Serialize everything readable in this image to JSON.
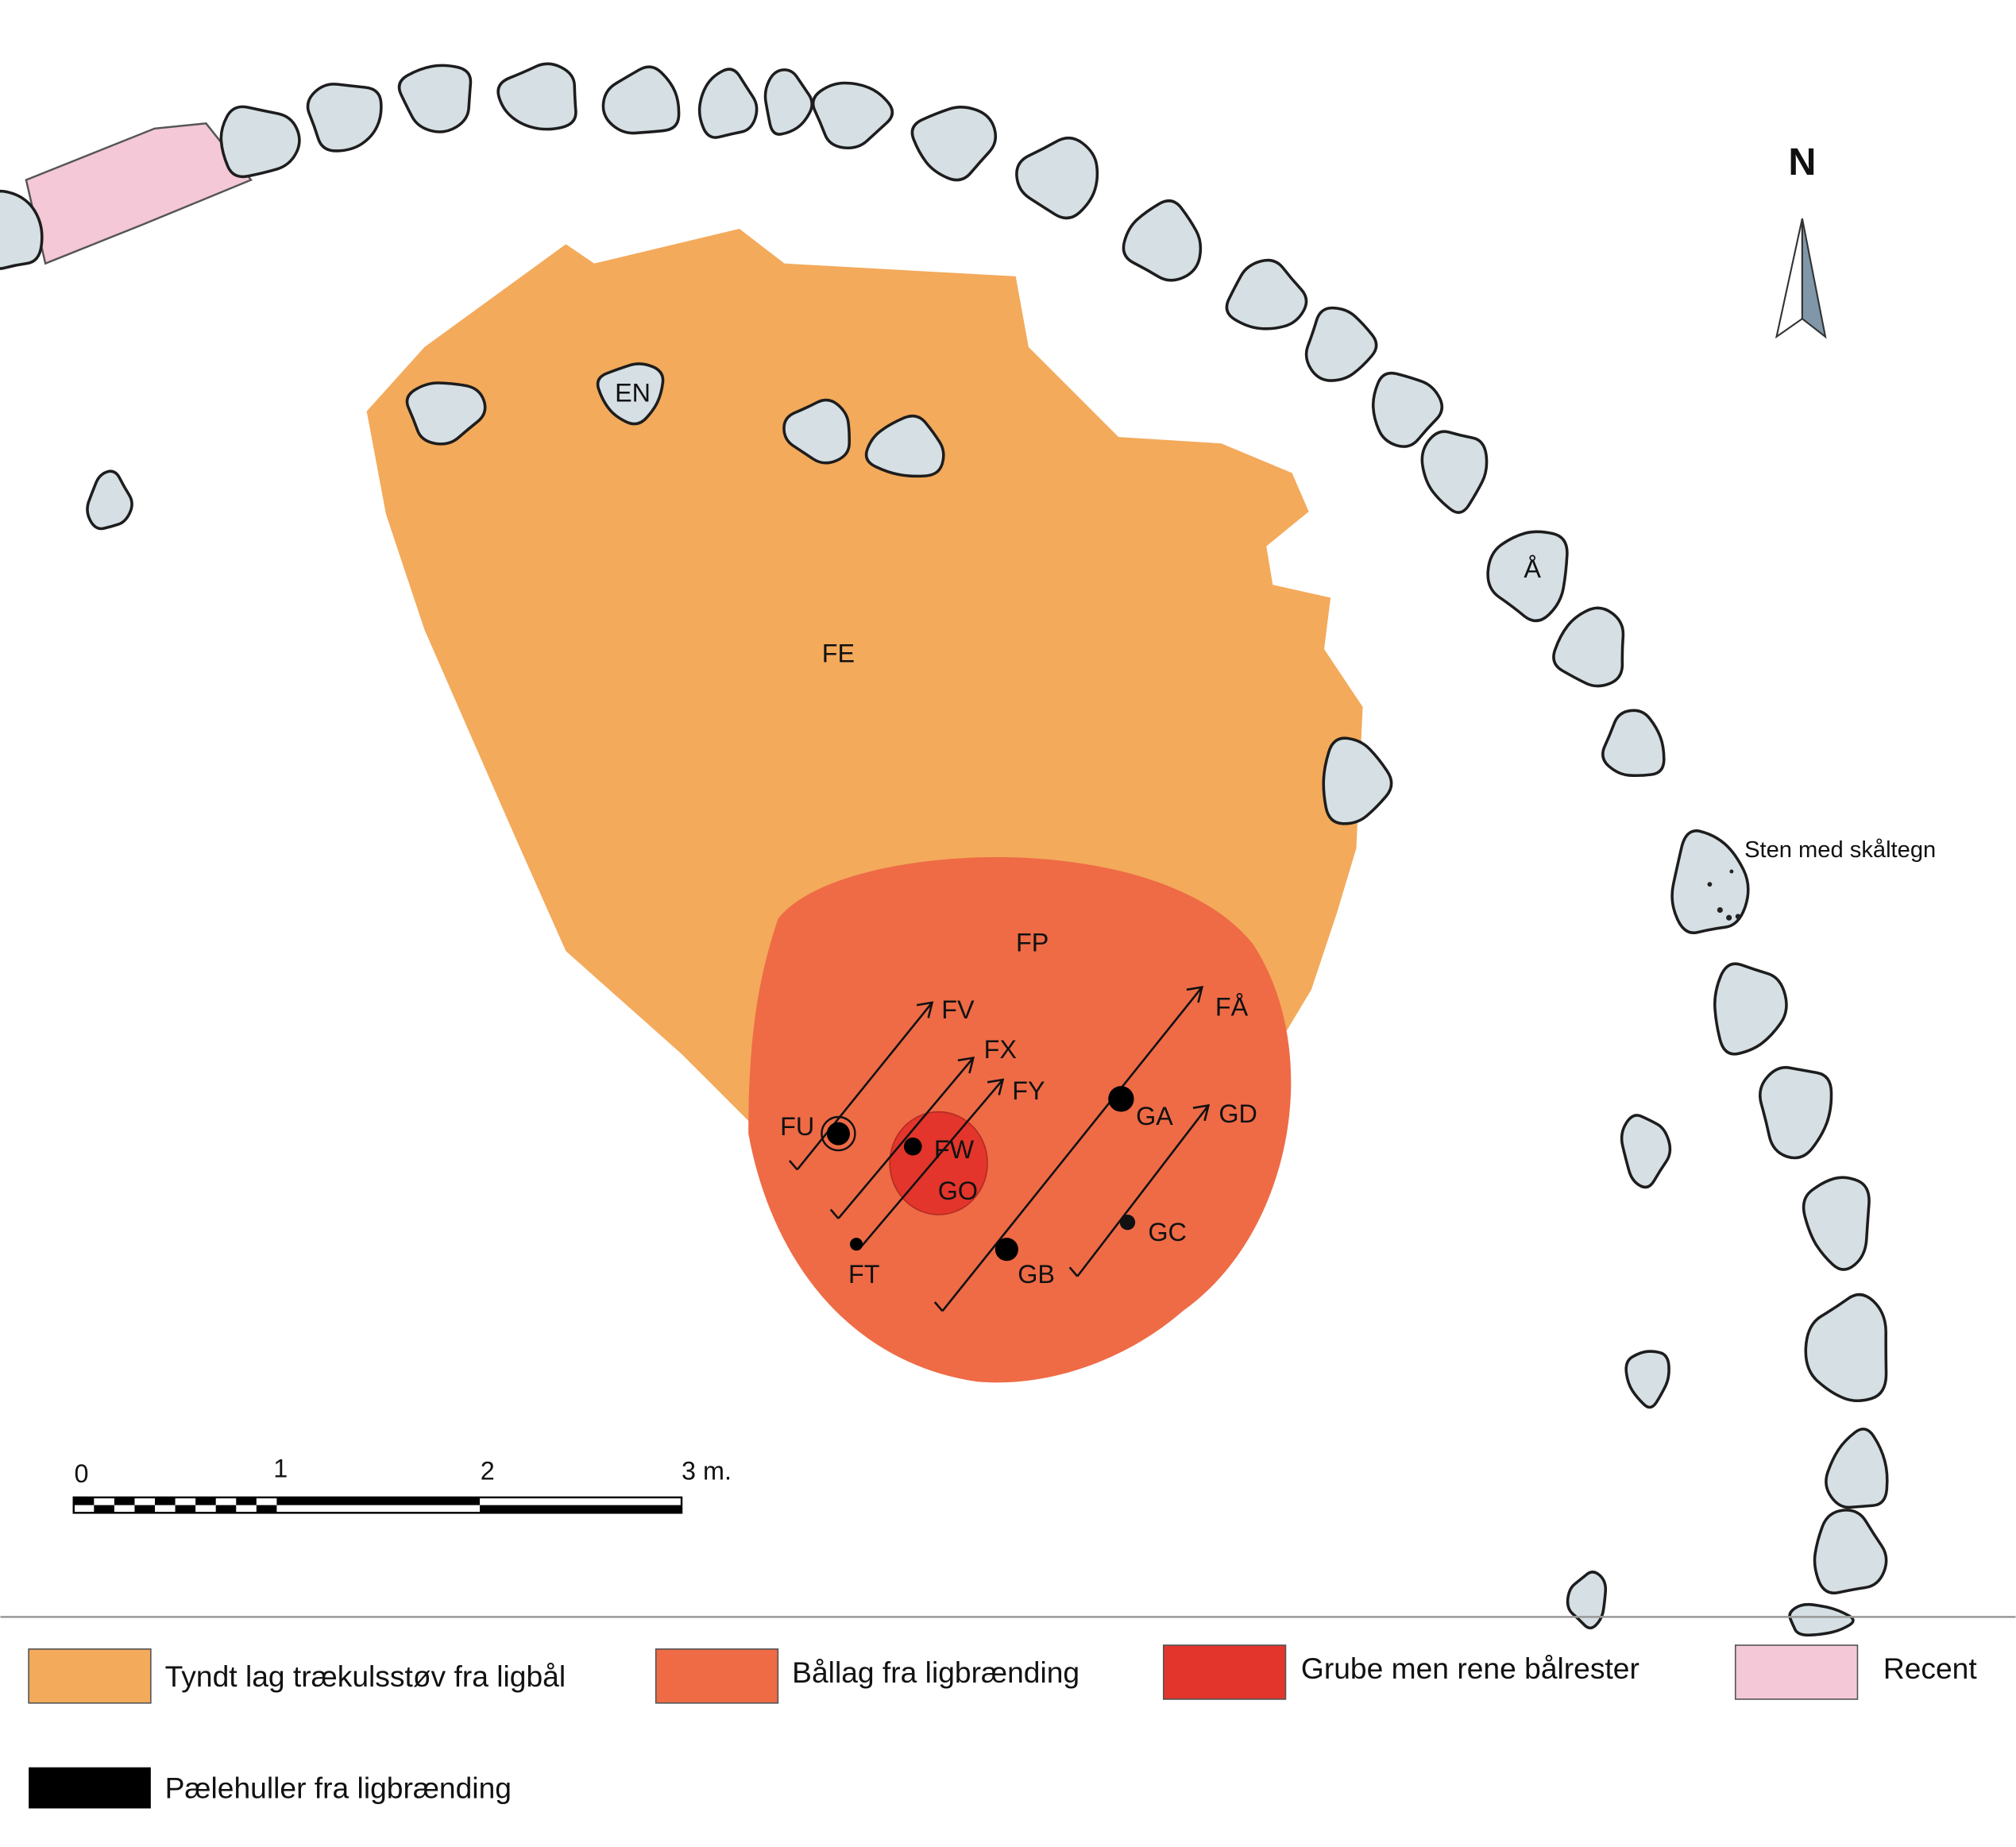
{
  "north": "N",
  "features": {
    "EN": "EN",
    "FE": "FE",
    "FP": "FP",
    "A": "Å",
    "FV": "FV",
    "FX": "FX",
    "FY": "FY",
    "FU": "FU",
    "FW": "FW",
    "GO": "GO",
    "FT": "FT",
    "GA": "GA",
    "GD": "GD",
    "GC": "GC",
    "GB": "GB",
    "FAA": "FÅ"
  },
  "annotation": "Sten med skåltegn",
  "scale": {
    "labels": [
      "0",
      "1",
      "2",
      "3 m."
    ]
  },
  "legend": [
    "Tyndt lag trækulsstøv fra ligbål",
    "Bållag fra ligbrænding",
    "Grube men rene bålrester",
    "Recent",
    "Pælehuller fra ligbrænding"
  ]
}
